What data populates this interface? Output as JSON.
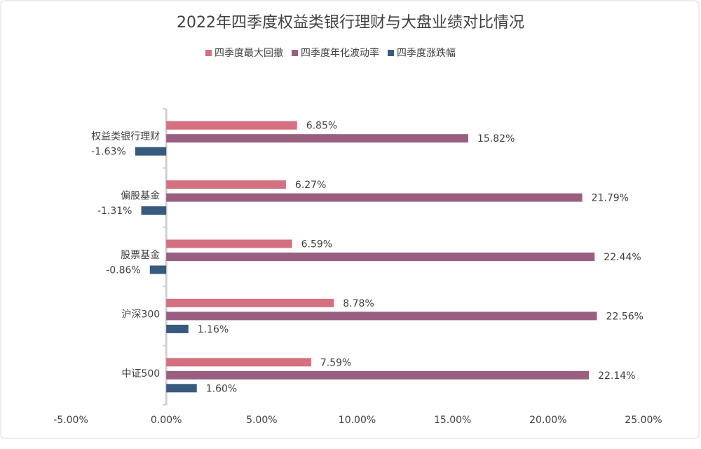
{
  "chart_data": {
    "type": "bar",
    "orientation": "horizontal",
    "title": "2022年四季度权益类银行理财与大盘业绩对比情况",
    "categories": [
      "权益类银行理财",
      "偏股基金",
      "股票基金",
      "沪深300",
      "中证500"
    ],
    "series": [
      {
        "name": "四季度最大回撤",
        "color": "#d4707f",
        "values": [
          6.85,
          6.27,
          6.59,
          8.78,
          7.59
        ],
        "value_labels": [
          "6.85%",
          "6.27%",
          "6.59%",
          "8.78%",
          "7.59%"
        ]
      },
      {
        "name": "四季度年化波动率",
        "color": "#9a5f80",
        "values": [
          15.82,
          21.79,
          22.44,
          22.56,
          22.14
        ],
        "value_labels": [
          "15.82%",
          "21.79%",
          "22.44%",
          "22.56%",
          "22.14%"
        ]
      },
      {
        "name": "四季度涨跌幅",
        "color": "#385a7e",
        "values": [
          -1.63,
          -1.31,
          -0.86,
          1.16,
          1.6
        ],
        "value_labels": [
          "-1.63%",
          "-1.31%",
          "-0.86%",
          "1.16%",
          "1.60%"
        ]
      }
    ],
    "xlim": [
      -5,
      25
    ],
    "xticks": [
      {
        "value": -5,
        "label": "-5.00%"
      },
      {
        "value": 0,
        "label": "0.00%"
      },
      {
        "value": 5,
        "label": "5.00%"
      },
      {
        "value": 10,
        "label": "10.00%"
      },
      {
        "value": 15,
        "label": "15.00%"
      },
      {
        "value": 20,
        "label": "20.00%"
      },
      {
        "value": 25,
        "label": "25.00%"
      }
    ],
    "legend": "top"
  }
}
